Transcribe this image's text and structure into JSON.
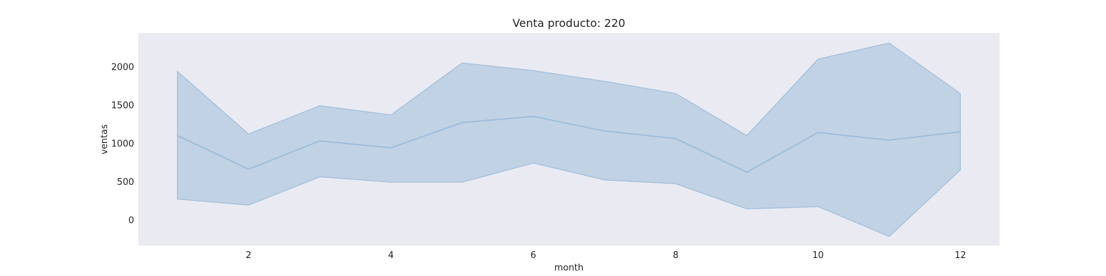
{
  "chart_data": {
    "type": "line",
    "title": "Venta producto: 220",
    "xlabel": "month",
    "ylabel": "ventas",
    "x": [
      1,
      2,
      3,
      4,
      5,
      6,
      7,
      8,
      9,
      10,
      11,
      12
    ],
    "series": [
      {
        "values": [
          1100,
          660,
          1030,
          940,
          1270,
          1350,
          1160,
          1060,
          620,
          1140,
          1040,
          1150
        ],
        "band_upper": [
          1940,
          1120,
          1490,
          1370,
          2050,
          1950,
          1810,
          1650,
          1100,
          2100,
          2310,
          1650
        ],
        "band_lower": [
          270,
          190,
          560,
          490,
          490,
          740,
          520,
          470,
          140,
          170,
          -220,
          650
        ]
      }
    ],
    "xticks": [
      2,
      4,
      6,
      8,
      10,
      12
    ],
    "yticks": [
      0,
      500,
      1000,
      1500,
      2000
    ],
    "xlim": [
      0.45,
      12.55
    ],
    "ylim": [
      -340,
      2440
    ],
    "grid": false,
    "colors": {
      "background": "#eaeaf2",
      "line": "#9ebedc",
      "band": "#b3c9df"
    }
  }
}
